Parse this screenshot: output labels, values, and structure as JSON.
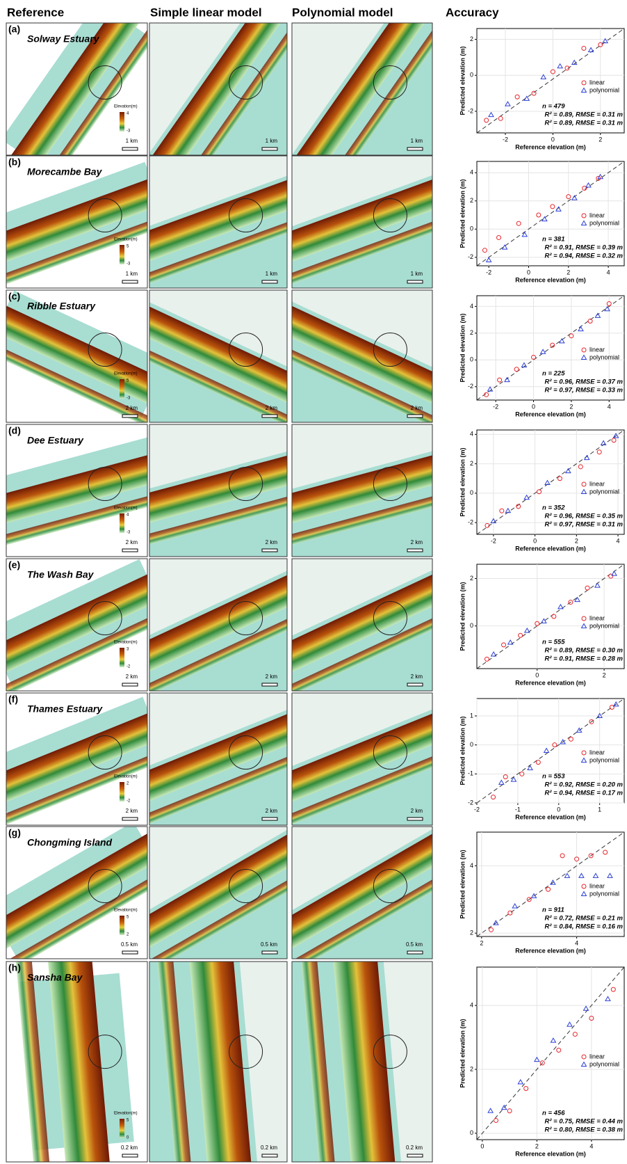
{
  "headers": [
    "Reference",
    "Simple linear model",
    "Polynomial model",
    "Accuracy"
  ],
  "legend_title": "Elevation(m)",
  "maps": [
    {
      "label": "(a)",
      "site": "Solway Estuary",
      "legend_max": 4,
      "legend_min": -3,
      "scale": "1 km"
    },
    {
      "label": "(b)",
      "site": "Morecambe Bay",
      "legend_max": 5,
      "legend_min": -3,
      "scale": "1 km"
    },
    {
      "label": "(c)",
      "site": "Ribble Estuary",
      "legend_max": 5,
      "legend_min": -3,
      "scale": "2 km"
    },
    {
      "label": "(d)",
      "site": "Dee Estuary",
      "legend_max": 4,
      "legend_min": -3,
      "scale": "2 km"
    },
    {
      "label": "(e)",
      "site": "The Wash Bay",
      "legend_max": 3,
      "legend_min": -2,
      "scale": "2 km"
    },
    {
      "label": "(f)",
      "site": "Thames Estuary",
      "legend_max": 2,
      "legend_min": -2,
      "scale": "2 km"
    },
    {
      "label": "(g)",
      "site": "Chongming Island",
      "legend_max": 5,
      "legend_min": 2,
      "scale": "0.5 km"
    },
    {
      "label": "(h)",
      "site": "Sansha Bay",
      "legend_max": 5,
      "legend_min": 0,
      "scale": "0.2 km"
    }
  ],
  "chart_data": [
    {
      "type": "scatter",
      "x_label": "Reference elevation (m)",
      "y_label": "Predicted elevation (m)",
      "annotation": "n = 479",
      "grid": true,
      "xlim": [
        -3.2,
        3
      ],
      "ylim": [
        -3.2,
        2.6
      ],
      "xticks": [
        -2,
        0,
        2
      ],
      "yticks": [
        -2,
        0,
        2
      ],
      "series": [
        {
          "name": "linear",
          "color": "#e8232a",
          "marker": "circle",
          "stats": "R² = 0.89, RMSE = 0.31 m",
          "x": [
            -2.8,
            -2.2,
            -1.5,
            -0.8,
            0,
            0.6,
            1.3,
            2.0
          ],
          "values": [
            -2.5,
            -2.4,
            -1.2,
            -1.0,
            0.2,
            0.4,
            1.5,
            1.7
          ]
        },
        {
          "name": "polynomial",
          "color": "#2a3fd6",
          "marker": "triangle",
          "stats": "R² = 0.89, RMSE = 0.31 m",
          "x": [
            -2.6,
            -1.9,
            -1.1,
            -0.4,
            0.3,
            0.9,
            1.6,
            2.2
          ],
          "values": [
            -2.2,
            -1.6,
            -1.3,
            -0.1,
            0.5,
            0.7,
            1.4,
            1.9
          ]
        }
      ]
    },
    {
      "type": "scatter",
      "x_label": "Reference elevation (m)",
      "y_label": "Predicted elevation (m)",
      "annotation": "n = 381",
      "grid": true,
      "xlim": [
        -2.6,
        4.8
      ],
      "ylim": [
        -2.6,
        4.8
      ],
      "xticks": [
        -2,
        0,
        2,
        4
      ],
      "yticks": [
        -2,
        0,
        2,
        4
      ],
      "series": [
        {
          "name": "linear",
          "color": "#e8232a",
          "marker": "circle",
          "stats": "R² = 0.91, RMSE = 0.39 m",
          "x": [
            -2.2,
            -1.5,
            -0.5,
            0.5,
            1.2,
            2.0,
            2.8,
            3.5
          ],
          "values": [
            -1.5,
            -0.6,
            0.4,
            1.0,
            1.6,
            2.3,
            2.9,
            3.6
          ]
        },
        {
          "name": "polynomial",
          "color": "#2a3fd6",
          "marker": "triangle",
          "stats": "R² = 0.94, RMSE = 0.32 m",
          "x": [
            -2.0,
            -1.2,
            -0.2,
            0.8,
            1.5,
            2.3,
            3.0,
            3.6
          ],
          "values": [
            -2.2,
            -1.3,
            -0.4,
            0.7,
            1.4,
            2.2,
            3.1,
            3.7
          ]
        }
      ]
    },
    {
      "type": "scatter",
      "x_label": "Reference elevation (m)",
      "y_label": "Predicted elevation (m)",
      "annotation": "n = 225",
      "grid": true,
      "xlim": [
        -3,
        4.8
      ],
      "ylim": [
        -3,
        4.8
      ],
      "xticks": [
        -2,
        0,
        2,
        4
      ],
      "yticks": [
        -2,
        0,
        2,
        4
      ],
      "series": [
        {
          "name": "linear",
          "color": "#e8232a",
          "marker": "circle",
          "stats": "R² = 0.96, RMSE = 0.37 m",
          "x": [
            -2.5,
            -1.8,
            -0.9,
            0,
            1,
            2,
            3,
            4
          ],
          "values": [
            -2.6,
            -1.5,
            -0.7,
            0.2,
            1.1,
            1.8,
            2.9,
            4.2
          ]
        },
        {
          "name": "polynomial",
          "color": "#2a3fd6",
          "marker": "triangle",
          "stats": "R² = 0.97, RMSE = 0.33 m",
          "x": [
            -2.3,
            -1.4,
            -0.5,
            0.5,
            1.5,
            2.5,
            3.4,
            3.9
          ],
          "values": [
            -2.2,
            -1.5,
            -0.4,
            0.6,
            1.4,
            2.3,
            3.3,
            3.8
          ]
        }
      ]
    },
    {
      "type": "scatter",
      "x_label": "Reference elevation (m)",
      "y_label": "Predicted elevation (m)",
      "annotation": "n = 352",
      "grid": true,
      "xlim": [
        -2.8,
        4.3
      ],
      "ylim": [
        -2.8,
        4.3
      ],
      "xticks": [
        -2,
        0,
        2,
        4
      ],
      "yticks": [
        -2,
        0,
        2,
        4
      ],
      "series": [
        {
          "name": "linear",
          "color": "#e8232a",
          "marker": "circle",
          "stats": "R² = 0.96, RMSE = 0.35 m",
          "x": [
            -2.3,
            -1.6,
            -0.8,
            0.2,
            1.2,
            2.2,
            3.1,
            3.8
          ],
          "values": [
            -2.2,
            -1.2,
            -0.9,
            0.1,
            1.0,
            1.8,
            2.8,
            3.6
          ]
        },
        {
          "name": "polynomial",
          "color": "#2a3fd6",
          "marker": "triangle",
          "stats": "R² = 0.97, RMSE = 0.31 m",
          "x": [
            -2.0,
            -1.3,
            -0.4,
            0.6,
            1.6,
            2.5,
            3.3,
            3.9
          ],
          "values": [
            -1.9,
            -1.2,
            -0.3,
            0.7,
            1.5,
            2.4,
            3.4,
            3.9
          ]
        }
      ]
    },
    {
      "type": "scatter",
      "x_label": "Reference elevation (m)",
      "y_label": "Predicted elevation (m)",
      "annotation": "n = 555",
      "grid": true,
      "xlim": [
        -1.8,
        2.6
      ],
      "ylim": [
        -1.8,
        2.6
      ],
      "xticks": [
        0,
        2
      ],
      "yticks": [
        0,
        2
      ],
      "series": [
        {
          "name": "linear",
          "color": "#e8232a",
          "marker": "circle",
          "stats": "R² = 0.89, RMSE = 0.30 m",
          "x": [
            -1.5,
            -1.0,
            -0.5,
            0,
            0.5,
            1,
            1.5,
            2.2
          ],
          "values": [
            -1.4,
            -0.8,
            -0.4,
            0.1,
            0.4,
            1.0,
            1.6,
            2.1
          ]
        },
        {
          "name": "polynomial",
          "color": "#2a3fd6",
          "marker": "triangle",
          "stats": "R² = 0.91, RMSE = 0.28 m",
          "x": [
            -1.3,
            -0.8,
            -0.3,
            0.2,
            0.7,
            1.2,
            1.8,
            2.3
          ],
          "values": [
            -1.2,
            -0.7,
            -0.2,
            0.2,
            0.8,
            1.1,
            1.7,
            2.2
          ]
        }
      ]
    },
    {
      "type": "scatter",
      "x_label": "Reference elevation (m)",
      "y_label": "Predicted elevation (m)",
      "annotation": "n = 553",
      "grid": true,
      "xlim": [
        -2,
        1.6
      ],
      "ylim": [
        -2,
        1.6
      ],
      "xticks": [
        -2,
        -1,
        0,
        1
      ],
      "yticks": [
        -2,
        -1,
        0,
        1
      ],
      "series": [
        {
          "name": "linear",
          "color": "#e8232a",
          "marker": "circle",
          "stats": "R² = 0.92, RMSE = 0.20 m",
          "x": [
            -1.6,
            -1.3,
            -0.9,
            -0.5,
            -0.1,
            0.3,
            0.8,
            1.3
          ],
          "values": [
            -1.8,
            -1.1,
            -1.0,
            -0.6,
            0,
            0.2,
            0.8,
            1.3
          ]
        },
        {
          "name": "polynomial",
          "color": "#2a3fd6",
          "marker": "triangle",
          "stats": "R² = 0.94, RMSE = 0.17 m",
          "x": [
            -1.4,
            -1.1,
            -0.7,
            -0.3,
            0.1,
            0.5,
            1.0,
            1.4
          ],
          "values": [
            -1.3,
            -1.2,
            -0.8,
            -0.2,
            0.1,
            0.5,
            1.0,
            1.4
          ]
        }
      ]
    },
    {
      "type": "scatter",
      "x_label": "Reference elevation (m)",
      "y_label": "Predicted elevation (m)",
      "annotation": "n = 911",
      "grid": true,
      "xlim": [
        1.9,
        5
      ],
      "ylim": [
        1.9,
        5
      ],
      "xticks": [
        2,
        4
      ],
      "yticks": [
        2,
        4
      ],
      "series": [
        {
          "name": "linear",
          "color": "#e8232a",
          "marker": "circle",
          "stats": "R² = 0.72, RMSE = 0.21 m",
          "x": [
            2.2,
            2.6,
            3.0,
            3.4,
            3.7,
            4.0,
            4.3,
            4.6
          ],
          "values": [
            2.1,
            2.6,
            3.0,
            3.3,
            4.3,
            4.2,
            4.3,
            4.4
          ]
        },
        {
          "name": "polynomial",
          "color": "#2a3fd6",
          "marker": "triangle",
          "stats": "R² = 0.84, RMSE = 0.16 m",
          "x": [
            2.3,
            2.7,
            3.1,
            3.5,
            3.8,
            4.1,
            4.4,
            4.7
          ],
          "values": [
            2.3,
            2.8,
            3.1,
            3.5,
            3.7,
            3.7,
            3.7,
            3.7
          ]
        }
      ]
    },
    {
      "type": "scatter",
      "x_label": "Reference elevation (m)",
      "y_label": "Predicted elevation (m)",
      "annotation": "n = 456",
      "grid": true,
      "xlim": [
        -0.2,
        5.2
      ],
      "ylim": [
        -0.2,
        5.2
      ],
      "xticks": [
        0,
        2,
        4
      ],
      "yticks": [
        0,
        2,
        4
      ],
      "series": [
        {
          "name": "linear",
          "color": "#e8232a",
          "marker": "circle",
          "stats": "R² = 0.75, RMSE = 0.44 m",
          "x": [
            0.5,
            1.0,
            1.6,
            2.2,
            2.8,
            3.4,
            4.0,
            4.8
          ],
          "values": [
            0.4,
            0.7,
            1.4,
            2.2,
            2.6,
            3.1,
            3.6,
            4.5
          ]
        },
        {
          "name": "polynomial",
          "color": "#2a3fd6",
          "marker": "triangle",
          "stats": "R² = 0.80, RMSE = 0.38 m",
          "x": [
            0.3,
            0.8,
            1.4,
            2.0,
            2.6,
            3.2,
            3.8,
            4.6
          ],
          "values": [
            0.7,
            0.8,
            1.6,
            2.3,
            2.9,
            3.4,
            3.9,
            4.2
          ]
        }
      ]
    }
  ]
}
